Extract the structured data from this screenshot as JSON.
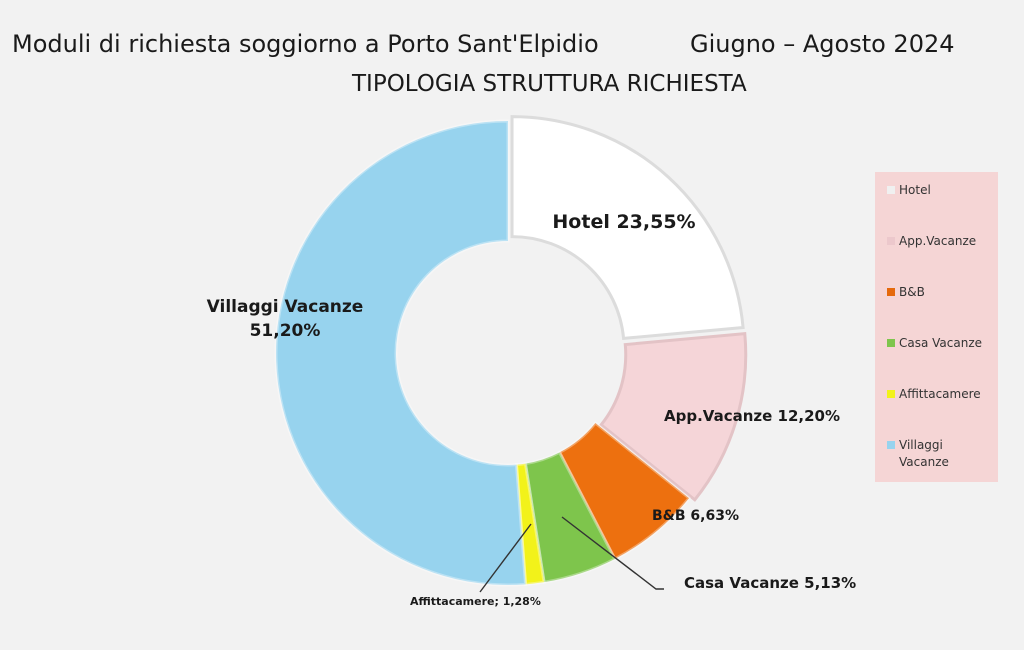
{
  "header": {
    "title": "Moduli di richiesta soggiorno a Porto Sant'Elpidio",
    "period": "Giugno – Agosto 2024",
    "subtitle": "TIPOLOGIA STRUTTURA RICHIESTA"
  },
  "chart_data": {
    "type": "pie",
    "variant": "doughnut",
    "legend_position": "right",
    "series": [
      {
        "name": "Hotel",
        "value": 23.55,
        "color": "#ffffff",
        "label": "Hotel  23,55%"
      },
      {
        "name": "App.Vacanze",
        "value": 12.2,
        "color": "#f5d5d8",
        "label": "App.Vacanze 12,20%"
      },
      {
        "name": "B&B",
        "value": 6.63,
        "color": "#ed700f",
        "label": "B&B 6,63%"
      },
      {
        "name": "Casa Vacanze",
        "value": 5.13,
        "color": "#7ec54c",
        "label": "Casa Vacanze 5,13%"
      },
      {
        "name": "Affittacamere",
        "value": 1.28,
        "color": "#f2f21a",
        "label": "Affittacamere; 1,28%"
      },
      {
        "name": "Villaggi Vacanze",
        "value": 51.2,
        "color": "#97d3ee",
        "label": "Villaggi Vacanze\n51,20%"
      }
    ]
  },
  "legend": {
    "items": [
      {
        "label": "Hotel",
        "color": "#f0f0f0"
      },
      {
        "label": "App.Vacanze",
        "color": "#ecc8cc"
      },
      {
        "label": "B&B",
        "color": "#e5690c"
      },
      {
        "label": "Casa Vacanze",
        "color": "#7ec54c"
      },
      {
        "label": "Affittacamere",
        "color": "#f2f21a"
      },
      {
        "label": "Villaggi Vacanze",
        "color": "#97d3ee"
      }
    ]
  }
}
